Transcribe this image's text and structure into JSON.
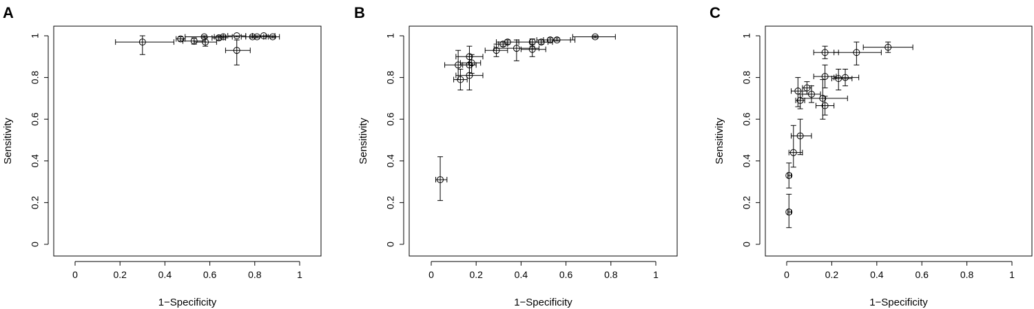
{
  "chart_data": [
    {
      "panel": "A",
      "type": "scatter",
      "xlabel": "1−Specificity",
      "ylabel": "Sensitivity",
      "xlim": [
        0,
        1
      ],
      "ylim": [
        0,
        1
      ],
      "xticks": [
        "0",
        "0.2",
        "0.4",
        "0.6",
        "0.8",
        "1"
      ],
      "yticks": [
        "0",
        "0.2",
        "0.4",
        "0.6",
        "0.8",
        "1"
      ],
      "points": [
        {
          "x": 0.3,
          "y": 0.97,
          "xlo": 0.18,
          "xhi": 0.44,
          "ylo": 0.91,
          "yhi": 1.0
        },
        {
          "x": 0.47,
          "y": 0.985,
          "xlo": 0.45,
          "xhi": 0.49,
          "ylo": 0.975,
          "yhi": 0.995
        },
        {
          "x": 0.53,
          "y": 0.975,
          "xlo": 0.48,
          "xhi": 0.58,
          "ylo": 0.96,
          "yhi": 0.99
        },
        {
          "x": 0.58,
          "y": 0.97,
          "xlo": 0.53,
          "xhi": 0.63,
          "ylo": 0.95,
          "yhi": 0.99
        },
        {
          "x": 0.575,
          "y": 0.995,
          "xlo": 0.49,
          "xhi": 0.66,
          "ylo": 0.99,
          "yhi": 1.0
        },
        {
          "x": 0.64,
          "y": 0.99,
          "xlo": 0.61,
          "xhi": 0.67,
          "ylo": 0.98,
          "yhi": 1.0
        },
        {
          "x": 0.66,
          "y": 0.995,
          "xlo": 0.62,
          "xhi": 0.7,
          "ylo": 0.99,
          "yhi": 1.0
        },
        {
          "x": 0.72,
          "y": 0.93,
          "xlo": 0.67,
          "xhi": 0.78,
          "ylo": 0.86,
          "yhi": 0.98
        },
        {
          "x": 0.72,
          "y": 1.0,
          "xlo": 0.68,
          "xhi": 0.76,
          "ylo": 0.995,
          "yhi": 1.0
        },
        {
          "x": 0.79,
          "y": 0.995,
          "xlo": 0.74,
          "xhi": 0.84,
          "ylo": 0.99,
          "yhi": 1.0
        },
        {
          "x": 0.81,
          "y": 0.995,
          "xlo": 0.76,
          "xhi": 0.86,
          "ylo": 0.99,
          "yhi": 1.0
        },
        {
          "x": 0.84,
          "y": 1.0,
          "xlo": 0.79,
          "xhi": 0.89,
          "ylo": 0.995,
          "yhi": 1.0
        },
        {
          "x": 0.88,
          "y": 0.995,
          "xlo": 0.85,
          "xhi": 0.91,
          "ylo": 0.99,
          "yhi": 1.0
        }
      ]
    },
    {
      "panel": "B",
      "type": "scatter",
      "xlabel": "1−Specificity",
      "ylabel": "Sensitivity",
      "xlim": [
        0,
        1
      ],
      "ylim": [
        0,
        1
      ],
      "xticks": [
        "0",
        "0.2",
        "0.4",
        "0.6",
        "0.8",
        "1"
      ],
      "yticks": [
        "0",
        "0.2",
        "0.4",
        "0.6",
        "0.8",
        "1"
      ],
      "points": [
        {
          "x": 0.04,
          "y": 0.31,
          "xlo": 0.02,
          "xhi": 0.07,
          "ylo": 0.21,
          "yhi": 0.42
        },
        {
          "x": 0.13,
          "y": 0.79,
          "xlo": 0.1,
          "xhi": 0.16,
          "ylo": 0.74,
          "yhi": 0.84
        },
        {
          "x": 0.12,
          "y": 0.86,
          "xlo": 0.06,
          "xhi": 0.18,
          "ylo": 0.79,
          "yhi": 0.93
        },
        {
          "x": 0.17,
          "y": 0.81,
          "xlo": 0.11,
          "xhi": 0.23,
          "ylo": 0.74,
          "yhi": 0.87
        },
        {
          "x": 0.17,
          "y": 0.86,
          "xlo": 0.14,
          "xhi": 0.2,
          "ylo": 0.81,
          "yhi": 0.9
        },
        {
          "x": 0.18,
          "y": 0.87,
          "xlo": 0.13,
          "xhi": 0.22,
          "ylo": 0.82,
          "yhi": 0.91
        },
        {
          "x": 0.17,
          "y": 0.9,
          "xlo": 0.11,
          "xhi": 0.23,
          "ylo": 0.86,
          "yhi": 0.95
        },
        {
          "x": 0.29,
          "y": 0.93,
          "xlo": 0.24,
          "xhi": 0.34,
          "ylo": 0.9,
          "yhi": 0.96
        },
        {
          "x": 0.32,
          "y": 0.96,
          "xlo": 0.3,
          "xhi": 0.34,
          "ylo": 0.95,
          "yhi": 0.97
        },
        {
          "x": 0.34,
          "y": 0.97,
          "xlo": 0.29,
          "xhi": 0.39,
          "ylo": 0.96,
          "yhi": 0.98
        },
        {
          "x": 0.38,
          "y": 0.94,
          "xlo": 0.28,
          "xhi": 0.48,
          "ylo": 0.88,
          "yhi": 0.98
        },
        {
          "x": 0.45,
          "y": 0.935,
          "xlo": 0.4,
          "xhi": 0.51,
          "ylo": 0.9,
          "yhi": 0.96
        },
        {
          "x": 0.45,
          "y": 0.97,
          "xlo": 0.38,
          "xhi": 0.52,
          "ylo": 0.95,
          "yhi": 0.985
        },
        {
          "x": 0.49,
          "y": 0.97,
          "xlo": 0.44,
          "xhi": 0.54,
          "ylo": 0.96,
          "yhi": 0.98
        },
        {
          "x": 0.53,
          "y": 0.98,
          "xlo": 0.47,
          "xhi": 0.62,
          "ylo": 0.97,
          "yhi": 0.99
        },
        {
          "x": 0.56,
          "y": 0.98,
          "xlo": 0.5,
          "xhi": 0.64,
          "ylo": 0.975,
          "yhi": 0.99
        },
        {
          "x": 0.73,
          "y": 0.995,
          "xlo": 0.63,
          "xhi": 0.82,
          "ylo": 0.99,
          "yhi": 1.0
        }
      ]
    },
    {
      "panel": "C",
      "type": "scatter",
      "xlabel": "1−Specificity",
      "ylabel": "Sensitivity",
      "xlim": [
        0,
        1
      ],
      "ylim": [
        0,
        1
      ],
      "xticks": [
        "0",
        "0.2",
        "0.4",
        "0.6",
        "0.8",
        "1"
      ],
      "yticks": [
        "0",
        "0.2",
        "0.4",
        "0.6",
        "0.8",
        "1"
      ],
      "points": [
        {
          "x": 0.01,
          "y": 0.155,
          "xlo": 0.005,
          "xhi": 0.02,
          "ylo": 0.08,
          "yhi": 0.24
        },
        {
          "x": 0.01,
          "y": 0.33,
          "xlo": 0.005,
          "xhi": 0.02,
          "ylo": 0.27,
          "yhi": 0.39
        },
        {
          "x": 0.03,
          "y": 0.44,
          "xlo": 0.01,
          "xhi": 0.07,
          "ylo": 0.37,
          "yhi": 0.57
        },
        {
          "x": 0.06,
          "y": 0.52,
          "xlo": 0.02,
          "xhi": 0.11,
          "ylo": 0.43,
          "yhi": 0.6
        },
        {
          "x": 0.05,
          "y": 0.735,
          "xlo": 0.02,
          "xhi": 0.09,
          "ylo": 0.66,
          "yhi": 0.8
        },
        {
          "x": 0.06,
          "y": 0.69,
          "xlo": 0.04,
          "xhi": 0.08,
          "ylo": 0.65,
          "yhi": 0.72
        },
        {
          "x": 0.09,
          "y": 0.75,
          "xlo": 0.07,
          "xhi": 0.11,
          "ylo": 0.72,
          "yhi": 0.78
        },
        {
          "x": 0.11,
          "y": 0.72,
          "xlo": 0.07,
          "xhi": 0.15,
          "ylo": 0.68,
          "yhi": 0.76
        },
        {
          "x": 0.16,
          "y": 0.7,
          "xlo": 0.06,
          "xhi": 0.27,
          "ylo": 0.6,
          "yhi": 0.79
        },
        {
          "x": 0.17,
          "y": 0.665,
          "xlo": 0.13,
          "xhi": 0.21,
          "ylo": 0.62,
          "yhi": 0.71
        },
        {
          "x": 0.17,
          "y": 0.805,
          "xlo": 0.12,
          "xhi": 0.22,
          "ylo": 0.75,
          "yhi": 0.86
        },
        {
          "x": 0.23,
          "y": 0.795,
          "xlo": 0.2,
          "xhi": 0.29,
          "ylo": 0.74,
          "yhi": 0.84
        },
        {
          "x": 0.26,
          "y": 0.8,
          "xlo": 0.21,
          "xhi": 0.32,
          "ylo": 0.76,
          "yhi": 0.84
        },
        {
          "x": 0.17,
          "y": 0.92,
          "xlo": 0.12,
          "xhi": 0.23,
          "ylo": 0.89,
          "yhi": 0.95
        },
        {
          "x": 0.31,
          "y": 0.92,
          "xlo": 0.21,
          "xhi": 0.42,
          "ylo": 0.86,
          "yhi": 0.97
        },
        {
          "x": 0.45,
          "y": 0.945,
          "xlo": 0.34,
          "xhi": 0.56,
          "ylo": 0.92,
          "yhi": 0.97
        }
      ]
    }
  ]
}
